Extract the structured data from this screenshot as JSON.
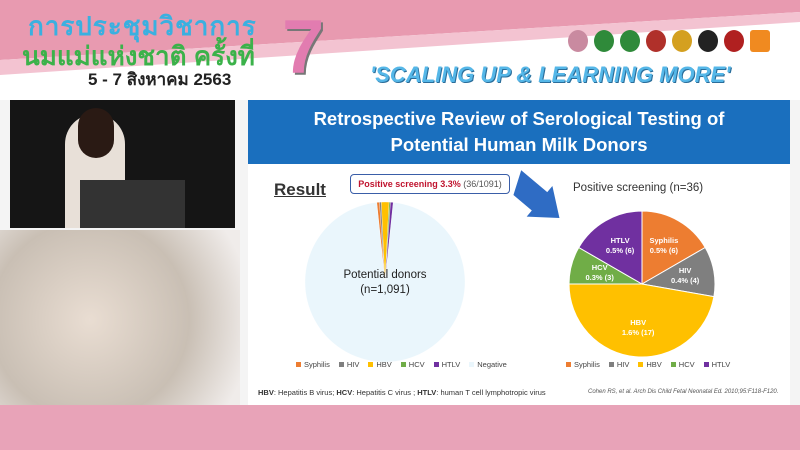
{
  "header": {
    "thai_line1": "การประชุมวิชาการ",
    "thai_line2": "นมแม่แห่งชาติ ครั้งที่",
    "thai_date": "5 - 7 สิงหาคม 2563",
    "edition": "7",
    "slogan": "'SCALING UP & LEARNING MORE'"
  },
  "slide": {
    "title_line1": "Retrospective Review of Serological Testing of",
    "title_line2": "Potential Human Milk Donors",
    "section": "Result",
    "callout_bold": "Positive screening 3.3%",
    "callout_rest": "(36/1091)",
    "left_center_line1": "Potential donors",
    "left_center_line2": "(n=1,091)",
    "right_title": "Positive screening (n=36)",
    "footnote_parts": [
      "HBV",
      ": Hepatitis B virus; ",
      "HCV",
      ": Hepatitis C virus ; ",
      "HTLV",
      ": human T cell lymphotropic virus"
    ],
    "citation": "Cohen RS, et al. Arch Dis Child Fetal Neonatal Ed. 2010;95:F118-F120."
  },
  "chart_data": [
    {
      "type": "pie",
      "categories": [
        "Syphilis",
        "HIV",
        "HBV",
        "HCV",
        "HTLV",
        "Negative"
      ],
      "values": [
        6,
        4,
        17,
        3,
        6,
        1055
      ],
      "colors": [
        "#ed7d31",
        "#7f7f7f",
        "#ffc000",
        "#70ad47",
        "#7030a0",
        "#eaf6fc"
      ],
      "legend": "bottom"
    },
    {
      "type": "pie",
      "title": "Positive screening (n=36)",
      "categories": [
        "Syphilis",
        "HIV",
        "HBV",
        "HCV",
        "HTLV"
      ],
      "values": [
        6,
        4,
        17,
        3,
        6
      ],
      "labels": [
        "0.5% (6)",
        "0.4% (4)",
        "1.6% (17)",
        "0.3% (3)",
        "0.5% (6)"
      ],
      "colors": [
        "#ed7d31",
        "#7f7f7f",
        "#ffc000",
        "#70ad47",
        "#7030a0"
      ],
      "legend": "bottom"
    }
  ]
}
